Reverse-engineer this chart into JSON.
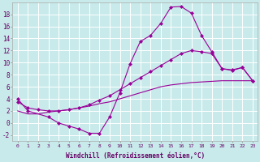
{
  "xlabel": "Windchill (Refroidissement éolien,°C)",
  "background_color": "#c8eaea",
  "grid_color": "#b0d8d8",
  "line_color": "#990099",
  "xlim": [
    -0.5,
    23.5
  ],
  "ylim": [
    -3,
    20
  ],
  "xticks": [
    0,
    1,
    2,
    3,
    4,
    5,
    6,
    7,
    8,
    9,
    10,
    11,
    12,
    13,
    14,
    15,
    16,
    17,
    18,
    19,
    20,
    21,
    22,
    23
  ],
  "yticks": [
    -2,
    0,
    2,
    4,
    6,
    8,
    10,
    12,
    14,
    16,
    18
  ],
  "line1_x": [
    0,
    1,
    3,
    4,
    5,
    6,
    7,
    8,
    9,
    10,
    11,
    12,
    13,
    14,
    15,
    16,
    17,
    18,
    19,
    20,
    21,
    22,
    23
  ],
  "line1_y": [
    4,
    2,
    1,
    0,
    -0.5,
    -1,
    -1.7,
    -1.7,
    1,
    5,
    9.8,
    13.5,
    14.5,
    16.5,
    19.2,
    19.3,
    18.2,
    14.5,
    11.8,
    9.0,
    8.8,
    9.2,
    7.0
  ],
  "line2_x": [
    0,
    1,
    2,
    3,
    4,
    5,
    6,
    7,
    8,
    9,
    10,
    11,
    12,
    13,
    14,
    15,
    16,
    17,
    18,
    19,
    20,
    21,
    22,
    23
  ],
  "line2_y": [
    3.5,
    2.5,
    2.2,
    2.0,
    2.0,
    2.2,
    2.5,
    3.0,
    3.8,
    4.5,
    5.5,
    6.5,
    7.5,
    8.5,
    9.5,
    10.5,
    11.5,
    12.0,
    11.8,
    11.5,
    9.0,
    8.7,
    9.2,
    7.0
  ],
  "line3_x": [
    0,
    1,
    2,
    3,
    4,
    5,
    6,
    7,
    8,
    9,
    10,
    11,
    12,
    13,
    14,
    15,
    16,
    17,
    18,
    19,
    20,
    21,
    22,
    23
  ],
  "line3_y": [
    2.0,
    1.5,
    1.5,
    1.8,
    2.0,
    2.2,
    2.5,
    2.8,
    3.2,
    3.5,
    4.0,
    4.5,
    5.0,
    5.5,
    6.0,
    6.3,
    6.5,
    6.7,
    6.8,
    6.9,
    7.0,
    7.0,
    7.0,
    7.0
  ],
  "marker": "D",
  "markersize": 2.0,
  "linewidth": 0.8,
  "xlabel_fontsize": 5.5,
  "tick_fontsize": 4.5,
  "ytick_fontsize": 5.5
}
